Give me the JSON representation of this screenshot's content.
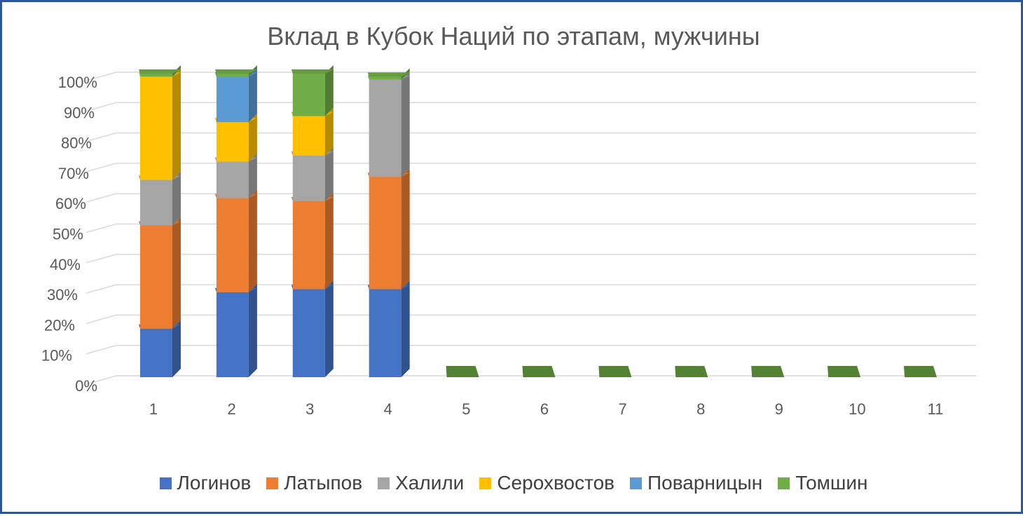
{
  "chart_data": {
    "type": "bar",
    "stacked": true,
    "normalized": true,
    "three_d": true,
    "title": "Вклад в Кубок Наций по этапам, мужчины",
    "categories": [
      "1",
      "2",
      "3",
      "4",
      "5",
      "6",
      "7",
      "8",
      "9",
      "10",
      "11"
    ],
    "y_ticks": [
      "0%",
      "10%",
      "20%",
      "30%",
      "40%",
      "50%",
      "60%",
      "70%",
      "80%",
      "90%",
      "100%"
    ],
    "ylim": [
      0,
      100
    ],
    "grid": true,
    "legend_position": "bottom",
    "series": [
      {
        "name": "Логинов",
        "color": "#4472C4",
        "values": [
          16,
          28,
          29,
          29,
          0,
          0,
          0,
          0,
          0,
          0,
          0
        ]
      },
      {
        "name": "Латыпов",
        "color": "#ED7D31",
        "values": [
          34,
          31,
          29,
          37,
          0,
          0,
          0,
          0,
          0,
          0,
          0
        ]
      },
      {
        "name": "Халили",
        "color": "#A5A5A5",
        "values": [
          15,
          12,
          15,
          32,
          0,
          0,
          0,
          0,
          0,
          0,
          0
        ]
      },
      {
        "name": "Серохвостов",
        "color": "#FFC000",
        "values": [
          34,
          13,
          13,
          0,
          0,
          0,
          0,
          0,
          0,
          0,
          0
        ]
      },
      {
        "name": "Поварницын",
        "color": "#5B9BD5",
        "values": [
          0,
          15,
          0,
          0,
          0,
          0,
          0,
          0,
          0,
          0,
          0
        ]
      },
      {
        "name": "Томшин",
        "color": "#70AD47",
        "values": [
          1,
          1,
          14,
          1,
          0,
          0,
          0,
          0,
          0,
          0,
          0
        ]
      }
    ]
  }
}
